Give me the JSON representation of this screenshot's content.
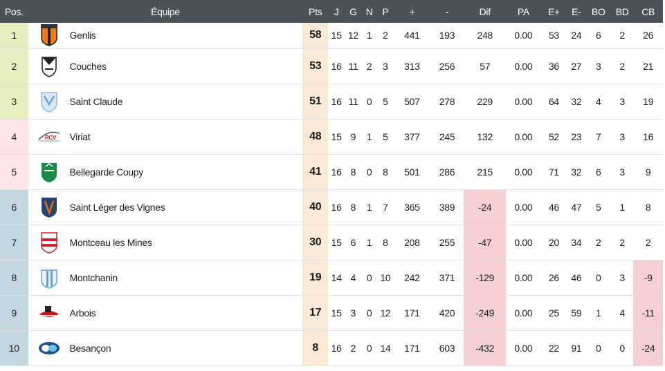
{
  "headers": {
    "pos": "Pos.",
    "team": "Équipe",
    "pts": "Pts",
    "j": "J",
    "g": "G",
    "n": "N",
    "p": "P",
    "pf": "+",
    "pa_pts": "-",
    "dif": "Dif",
    "pa": "PA",
    "eplus": "E+",
    "eminus": "E-",
    "bo": "BO",
    "bd": "BD",
    "cb": "CB"
  },
  "colors": {
    "header_bg": "#4a525a",
    "pos_top": "#e9eec0",
    "pos_pink": "#fde4e8",
    "pos_blue": "#c3d5df",
    "pts_bg": "#f8e8d6",
    "negative_bg": "#f5cfd2"
  },
  "rows": [
    {
      "pos": "1",
      "team": "Genlis",
      "logo": "genlis-logo",
      "pts": "58",
      "j": "15",
      "g": "12",
      "n": "1",
      "p": "2",
      "pf": "441",
      "pa_pts": "193",
      "dif": "248",
      "pa": "0.00",
      "eplus": "53",
      "eminus": "24",
      "bo": "6",
      "bd": "2",
      "cb": "26",
      "pos_color": "#e9eec0"
    },
    {
      "pos": "2",
      "team": "Couches",
      "logo": "couches-logo",
      "pts": "53",
      "j": "16",
      "g": "11",
      "n": "2",
      "p": "3",
      "pf": "313",
      "pa_pts": "256",
      "dif": "57",
      "pa": "0.00",
      "eplus": "36",
      "eminus": "27",
      "bo": "3",
      "bd": "2",
      "cb": "21",
      "pos_color": "#e9eec0"
    },
    {
      "pos": "3",
      "team": "Saint Claude",
      "logo": "saint-claude-logo",
      "pts": "51",
      "j": "16",
      "g": "11",
      "n": "0",
      "p": "5",
      "pf": "507",
      "pa_pts": "278",
      "dif": "229",
      "pa": "0.00",
      "eplus": "64",
      "eminus": "32",
      "bo": "4",
      "bd": "3",
      "cb": "19",
      "pos_color": "#e9eec0"
    },
    {
      "pos": "4",
      "team": "Viriat",
      "logo": "viriat-logo",
      "pts": "48",
      "j": "15",
      "g": "9",
      "n": "1",
      "p": "5",
      "pf": "377",
      "pa_pts": "245",
      "dif": "132",
      "pa": "0.00",
      "eplus": "52",
      "eminus": "23",
      "bo": "7",
      "bd": "3",
      "cb": "16",
      "pos_color": "#fde4e8"
    },
    {
      "pos": "5",
      "team": "Bellegarde Coupy",
      "logo": "bellegarde-coupy-logo",
      "pts": "41",
      "j": "16",
      "g": "8",
      "n": "0",
      "p": "8",
      "pf": "501",
      "pa_pts": "286",
      "dif": "215",
      "pa": "0.00",
      "eplus": "71",
      "eminus": "32",
      "bo": "6",
      "bd": "3",
      "cb": "9",
      "pos_color": "#fde4e8"
    },
    {
      "pos": "6",
      "team": "Saint Léger des Vignes",
      "logo": "saint-leger-logo",
      "pts": "40",
      "j": "16",
      "g": "8",
      "n": "1",
      "p": "7",
      "pf": "365",
      "pa_pts": "389",
      "dif": "-24",
      "pa": "0.00",
      "eplus": "46",
      "eminus": "47",
      "bo": "5",
      "bd": "1",
      "cb": "8",
      "pos_color": "#c3d5df"
    },
    {
      "pos": "7",
      "team": "Montceau les Mines",
      "logo": "montceau-logo",
      "pts": "30",
      "j": "15",
      "g": "6",
      "n": "1",
      "p": "8",
      "pf": "208",
      "pa_pts": "255",
      "dif": "-47",
      "pa": "0.00",
      "eplus": "20",
      "eminus": "34",
      "bo": "2",
      "bd": "2",
      "cb": "2",
      "pos_color": "#c3d5df"
    },
    {
      "pos": "8",
      "team": "Montchanin",
      "logo": "montchanin-logo",
      "pts": "19",
      "j": "14",
      "g": "4",
      "n": "0",
      "p": "10",
      "pf": "242",
      "pa_pts": "371",
      "dif": "-129",
      "pa": "0.00",
      "eplus": "26",
      "eminus": "46",
      "bo": "0",
      "bd": "3",
      "cb": "-9",
      "pos_color": "#c3d5df"
    },
    {
      "pos": "9",
      "team": "Arbois",
      "logo": "arbois-logo",
      "pts": "17",
      "j": "15",
      "g": "3",
      "n": "0",
      "p": "12",
      "pf": "171",
      "pa_pts": "420",
      "dif": "-249",
      "pa": "0.00",
      "eplus": "25",
      "eminus": "59",
      "bo": "1",
      "bd": "4",
      "cb": "-11",
      "pos_color": "#c3d5df"
    },
    {
      "pos": "10",
      "team": "Besançon",
      "logo": "besancon-logo",
      "pts": "8",
      "j": "16",
      "g": "2",
      "n": "0",
      "p": "14",
      "pf": "171",
      "pa_pts": "603",
      "dif": "-432",
      "pa": "0.00",
      "eplus": "22",
      "eminus": "91",
      "bo": "0",
      "bd": "0",
      "cb": "-24",
      "pos_color": "#c3d5df"
    }
  ]
}
